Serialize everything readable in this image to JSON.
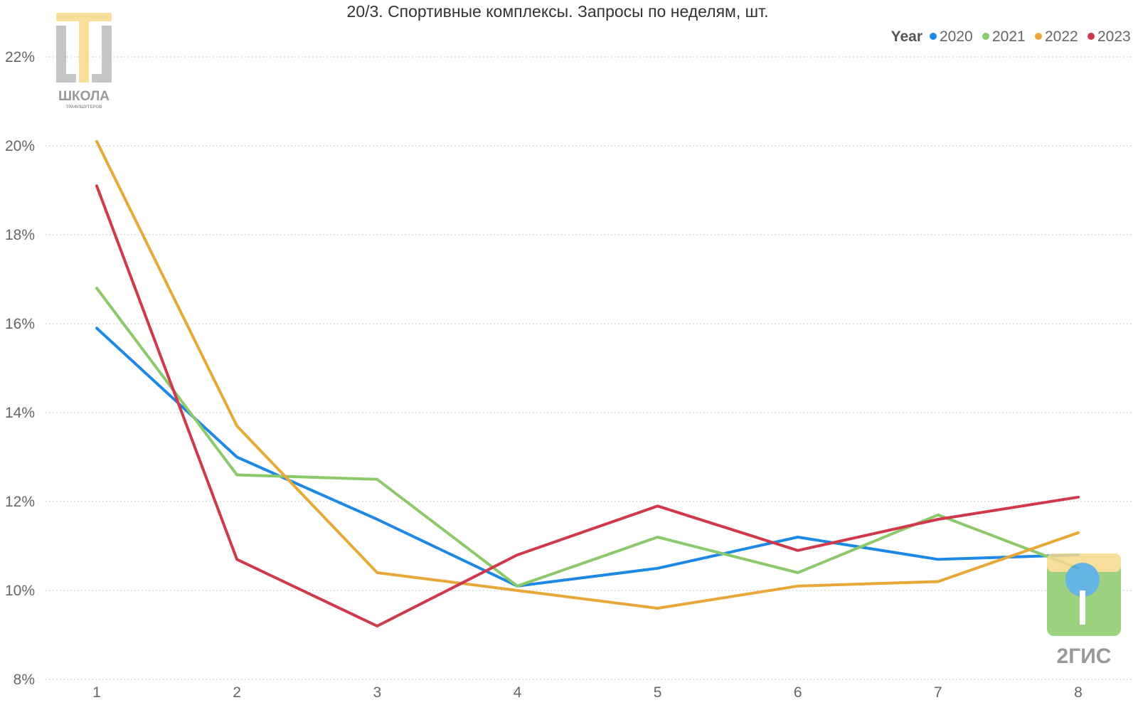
{
  "chart_data": {
    "type": "line",
    "title": "20/3. Спортивные комплексы. Запросы по неделям, шт.",
    "xlabel": "",
    "ylabel": "",
    "x": [
      1,
      2,
      3,
      4,
      5,
      6,
      7,
      8
    ],
    "x_tick_labels": [
      "1",
      "2",
      "3",
      "4",
      "5",
      "6",
      "7",
      "8"
    ],
    "ylim": [
      0.08,
      0.22
    ],
    "y_ticks": [
      0.08,
      0.1,
      0.12,
      0.14,
      0.16,
      0.18,
      0.2,
      0.22
    ],
    "y_tick_labels": [
      "8%",
      "10%",
      "12%",
      "14%",
      "16%",
      "18%",
      "20%",
      "22%"
    ],
    "grid": true,
    "legend_title": "Year",
    "legend_position": "top-right",
    "series": [
      {
        "name": "2020",
        "color": "#1E88E5",
        "values": [
          0.159,
          0.13,
          0.116,
          0.101,
          0.105,
          0.112,
          0.107,
          0.108
        ]
      },
      {
        "name": "2021",
        "color": "#8BC96A",
        "values": [
          0.168,
          0.126,
          0.125,
          0.101,
          0.112,
          0.104,
          0.117,
          0.105
        ]
      },
      {
        "name": "2022",
        "color": "#E8A838",
        "values": [
          0.201,
          0.137,
          0.104,
          0.1,
          0.096,
          0.101,
          0.102,
          0.113
        ]
      },
      {
        "name": "2023",
        "color": "#D0394A",
        "values": [
          0.191,
          0.107,
          0.092,
          0.108,
          0.119,
          0.109,
          0.116,
          0.121
        ]
      }
    ]
  },
  "watermarks": {
    "school_logo_text": "ШКОЛА",
    "school_logo_subtext": "ТРАФЛШУТЕРОВ",
    "school_logo_color": "#F6D98A",
    "gis_logo_text": "2ГИС",
    "gis_logo_colors": [
      "#8BC96A",
      "#F6D98A",
      "#4AA8E0"
    ]
  }
}
